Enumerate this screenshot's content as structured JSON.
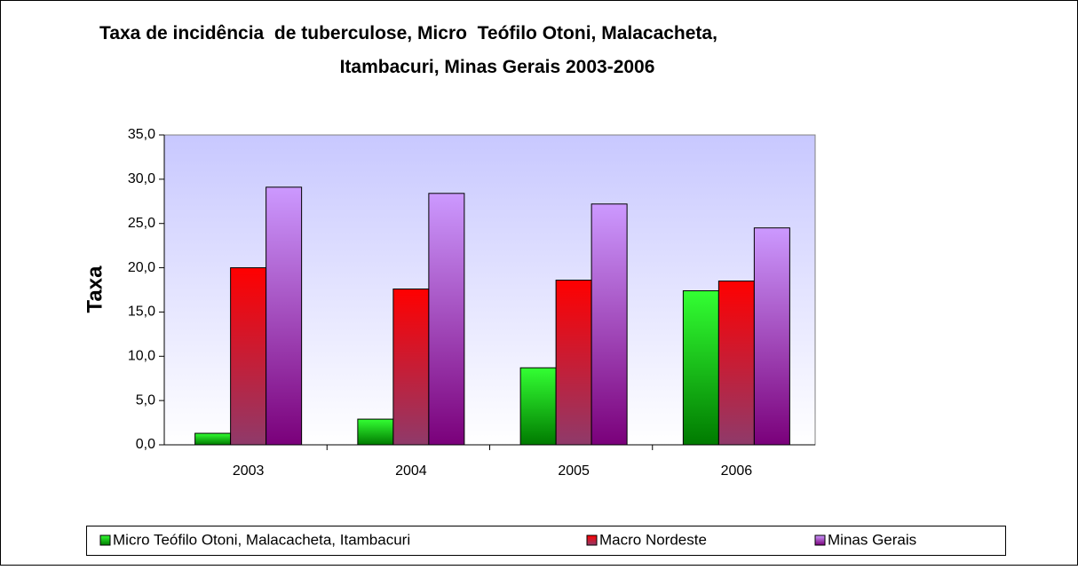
{
  "chart_data": {
    "type": "bar",
    "title": [
      "Taxa de incidência  de tuberculose, Micro  Teófilo Otoni, Malacacheta,",
      "Itambacuri, Minas Gerais 2003-2006"
    ],
    "y_label": "Taxa",
    "categories": [
      "2003",
      "2004",
      "2005",
      "2006"
    ],
    "series": [
      {
        "name": "Micro Teófilo Otoni, Malacacheta, Itambacuri",
        "color": "#33ff33",
        "values": [
          1.3,
          2.9,
          8.7,
          17.4
        ]
      },
      {
        "name": "Macro Nordeste",
        "color": "#ff0000",
        "values": [
          20.0,
          17.6,
          18.6,
          18.5
        ]
      },
      {
        "name": "Minas Gerais",
        "color": "#cc99ff",
        "values": [
          29.1,
          28.4,
          27.2,
          24.5
        ]
      }
    ],
    "ylim": [
      0,
      35
    ],
    "yticks": [
      {
        "value": 0,
        "label": "0,0"
      },
      {
        "value": 5,
        "label": "5,0"
      },
      {
        "value": 10,
        "label": "10,0"
      },
      {
        "value": 15,
        "label": "15,0"
      },
      {
        "value": 20,
        "label": "20,0"
      },
      {
        "value": 25,
        "label": "25,0"
      },
      {
        "value": 30,
        "label": "30,0"
      },
      {
        "value": 35,
        "label": "35,0"
      }
    ],
    "legend": "bottom"
  }
}
